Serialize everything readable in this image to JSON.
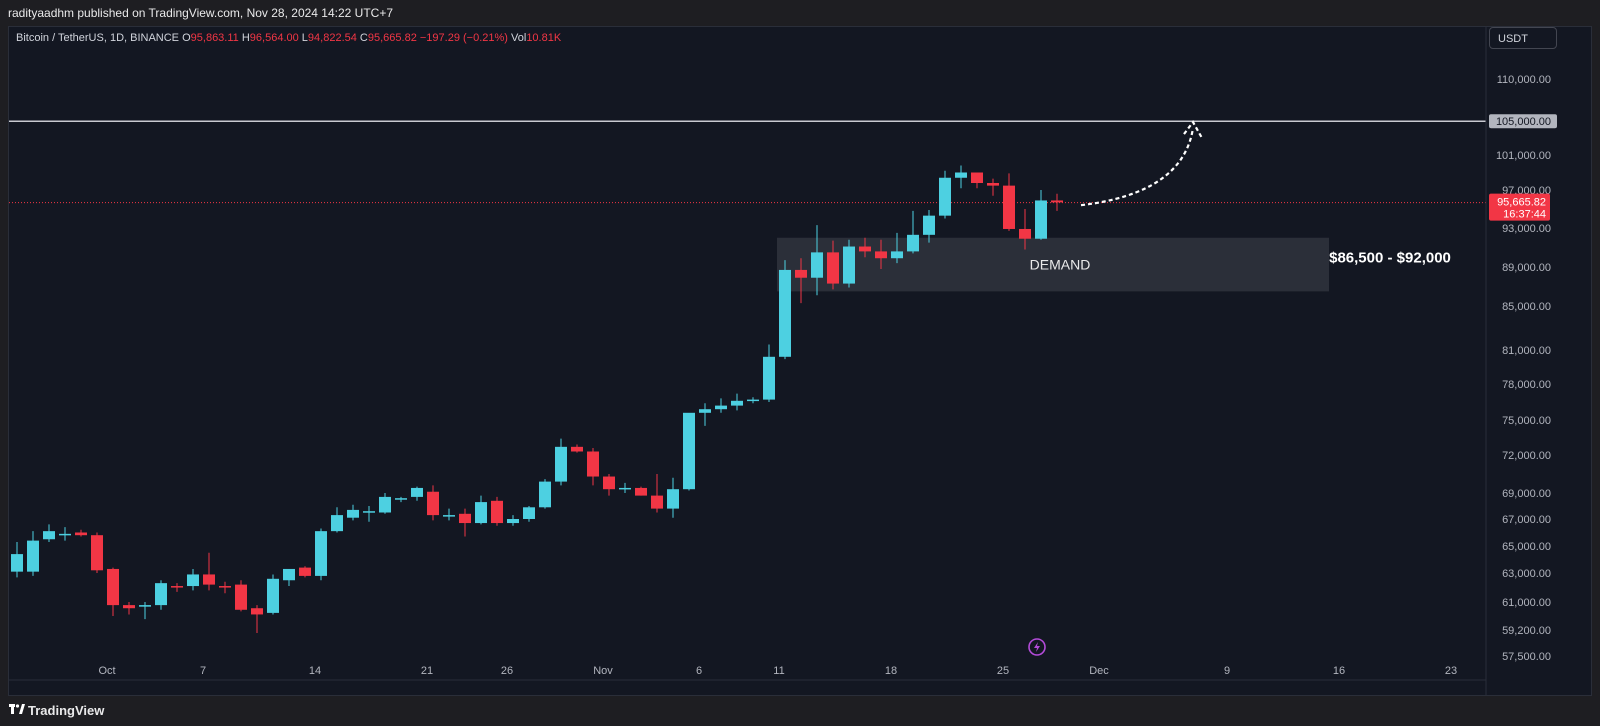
{
  "header": {
    "published": "radityaadhm published on TradingView.com, Nov 28, 2024 14:22 UTC+7"
  },
  "legend": {
    "symbol": "Bitcoin / TetherUS, 1D, BINANCE",
    "o_label": "O",
    "o_value": "95,863.11",
    "h_label": "H",
    "h_value": "96,564.00",
    "l_label": "L",
    "l_value": "94,822.54",
    "c_label": "C",
    "c_value": "95,665.82",
    "change": "−197.29 (−0.21%)",
    "vol_label": "Vol",
    "vol_value": "10.81K"
  },
  "currency_button": "USDT",
  "footer": {
    "brand": "TradingView"
  },
  "colors": {
    "up": "#4dd0e1",
    "down": "#f23645",
    "background": "#131722",
    "demand_zone": "#2f323c",
    "resistance_line": "#c8cad1",
    "price_line": "#f23645"
  },
  "chart_data": {
    "type": "candlestick",
    "timeframe": "1D",
    "y_tick_labels": [
      {
        "label": "110,000.00",
        "value": 110000
      },
      {
        "label": "101,000.00",
        "value": 101000
      },
      {
        "label": "97,000.00",
        "value": 97000
      },
      {
        "label": "93,000.00",
        "value": 93000
      },
      {
        "label": "89,000.00",
        "value": 89000
      },
      {
        "label": "85,000.00",
        "value": 85000
      },
      {
        "label": "81,000.00",
        "value": 81000
      },
      {
        "label": "78,000.00",
        "value": 78000
      },
      {
        "label": "75,000.00",
        "value": 75000
      },
      {
        "label": "72,000.00",
        "value": 72000
      },
      {
        "label": "69,000.00",
        "value": 69000
      },
      {
        "label": "67,000.00",
        "value": 67000
      },
      {
        "label": "65,000.00",
        "value": 65000
      },
      {
        "label": "63,000.00",
        "value": 63000
      },
      {
        "label": "61,000.00",
        "value": 61000
      },
      {
        "label": "59,200.00",
        "value": 59200
      },
      {
        "label": "57,500.00",
        "value": 57500
      }
    ],
    "x_tick_labels": [
      {
        "label": "Oct",
        "bar": 6
      },
      {
        "label": "7",
        "bar": 12
      },
      {
        "label": "14",
        "bar": 19
      },
      {
        "label": "21",
        "bar": 26
      },
      {
        "label": "26",
        "bar": 31
      },
      {
        "label": "Nov",
        "bar": 37
      },
      {
        "label": "6",
        "bar": 43
      },
      {
        "label": "11",
        "bar": 48
      },
      {
        "label": "18",
        "bar": 55
      },
      {
        "label": "25",
        "bar": 62
      },
      {
        "label": "Dec",
        "bar": 68
      },
      {
        "label": "9",
        "bar": 76
      },
      {
        "label": "16",
        "bar": 83
      },
      {
        "label": "23",
        "bar": 90
      }
    ],
    "candles": [
      {
        "o": 63100,
        "h": 65300,
        "l": 62700,
        "c": 64400
      },
      {
        "o": 63100,
        "h": 66100,
        "l": 62800,
        "c": 65400
      },
      {
        "o": 65500,
        "h": 66600,
        "l": 65300,
        "c": 66100
      },
      {
        "o": 65900,
        "h": 66400,
        "l": 65400,
        "c": 65900
      },
      {
        "o": 66000,
        "h": 66200,
        "l": 65700,
        "c": 65800
      },
      {
        "o": 65800,
        "h": 66000,
        "l": 63000,
        "c": 63200
      },
      {
        "o": 63300,
        "h": 63400,
        "l": 60100,
        "c": 60800
      },
      {
        "o": 60800,
        "h": 61000,
        "l": 60200,
        "c": 60600
      },
      {
        "o": 60700,
        "h": 61000,
        "l": 59900,
        "c": 60800
      },
      {
        "o": 60800,
        "h": 62500,
        "l": 60500,
        "c": 62300
      },
      {
        "o": 62100,
        "h": 62300,
        "l": 61700,
        "c": 62000
      },
      {
        "o": 62100,
        "h": 63300,
        "l": 61800,
        "c": 62900
      },
      {
        "o": 62900,
        "h": 64500,
        "l": 61800,
        "c": 62200
      },
      {
        "o": 62100,
        "h": 62400,
        "l": 61600,
        "c": 62000
      },
      {
        "o": 62200,
        "h": 62500,
        "l": 60400,
        "c": 60500
      },
      {
        "o": 60600,
        "h": 60800,
        "l": 59000,
        "c": 60200
      },
      {
        "o": 60300,
        "h": 62900,
        "l": 60200,
        "c": 62600
      },
      {
        "o": 62500,
        "h": 63300,
        "l": 62100,
        "c": 63300
      },
      {
        "o": 63400,
        "h": 63500,
        "l": 62700,
        "c": 62800
      },
      {
        "o": 62800,
        "h": 66300,
        "l": 62500,
        "c": 66100
      },
      {
        "o": 66100,
        "h": 67900,
        "l": 66000,
        "c": 67300
      },
      {
        "o": 67100,
        "h": 68100,
        "l": 66900,
        "c": 67700
      },
      {
        "o": 67500,
        "h": 68000,
        "l": 66800,
        "c": 67600
      },
      {
        "o": 67500,
        "h": 69000,
        "l": 67400,
        "c": 68700
      },
      {
        "o": 68500,
        "h": 68700,
        "l": 68300,
        "c": 68600
      },
      {
        "o": 68700,
        "h": 69500,
        "l": 68400,
        "c": 69400
      },
      {
        "o": 69100,
        "h": 69600,
        "l": 66900,
        "c": 67300
      },
      {
        "o": 67300,
        "h": 67800,
        "l": 66900,
        "c": 67300
      },
      {
        "o": 67400,
        "h": 67800,
        "l": 65700,
        "c": 66700
      },
      {
        "o": 66700,
        "h": 68800,
        "l": 66600,
        "c": 68300
      },
      {
        "o": 68400,
        "h": 68700,
        "l": 66500,
        "c": 66700
      },
      {
        "o": 66700,
        "h": 67300,
        "l": 66500,
        "c": 67000
      },
      {
        "o": 67000,
        "h": 68000,
        "l": 66800,
        "c": 67900
      },
      {
        "o": 67900,
        "h": 70100,
        "l": 67800,
        "c": 69900
      },
      {
        "o": 69900,
        "h": 73400,
        "l": 69600,
        "c": 72700
      },
      {
        "o": 72700,
        "h": 72900,
        "l": 72200,
        "c": 72300
      },
      {
        "o": 72300,
        "h": 72600,
        "l": 69600,
        "c": 70300
      },
      {
        "o": 70300,
        "h": 70500,
        "l": 68800,
        "c": 69300
      },
      {
        "o": 69300,
        "h": 69800,
        "l": 69000,
        "c": 69400
      },
      {
        "o": 69400,
        "h": 69500,
        "l": 68800,
        "c": 68800
      },
      {
        "o": 68800,
        "h": 70500,
        "l": 67500,
        "c": 67800
      },
      {
        "o": 67800,
        "h": 70200,
        "l": 67100,
        "c": 69300
      },
      {
        "o": 69300,
        "h": 75500,
        "l": 69200,
        "c": 75600
      },
      {
        "o": 75600,
        "h": 76400,
        "l": 74500,
        "c": 75900
      },
      {
        "o": 75900,
        "h": 76800,
        "l": 75600,
        "c": 76200
      },
      {
        "o": 76200,
        "h": 77200,
        "l": 75800,
        "c": 76600
      },
      {
        "o": 76600,
        "h": 76900,
        "l": 76400,
        "c": 76700
      },
      {
        "o": 76700,
        "h": 81500,
        "l": 76500,
        "c": 80400
      },
      {
        "o": 80400,
        "h": 89700,
        "l": 80200,
        "c": 88700
      },
      {
        "o": 88700,
        "h": 89900,
        "l": 85300,
        "c": 87900
      },
      {
        "o": 87900,
        "h": 93300,
        "l": 86100,
        "c": 90500
      },
      {
        "o": 90500,
        "h": 91700,
        "l": 86700,
        "c": 87300
      },
      {
        "o": 87300,
        "h": 91800,
        "l": 86900,
        "c": 91100
      },
      {
        "o": 91100,
        "h": 92000,
        "l": 90000,
        "c": 90600
      },
      {
        "o": 90600,
        "h": 91800,
        "l": 88800,
        "c": 89900
      },
      {
        "o": 89900,
        "h": 92500,
        "l": 89400,
        "c": 90600
      },
      {
        "o": 90600,
        "h": 94800,
        "l": 90400,
        "c": 92300
      },
      {
        "o": 92300,
        "h": 94900,
        "l": 91500,
        "c": 94300
      },
      {
        "o": 94300,
        "h": 99200,
        "l": 94000,
        "c": 98400
      },
      {
        "o": 98400,
        "h": 99800,
        "l": 97200,
        "c": 99000
      },
      {
        "o": 99000,
        "h": 99000,
        "l": 97200,
        "c": 97800
      },
      {
        "o": 97800,
        "h": 98300,
        "l": 96400,
        "c": 97500
      },
      {
        "o": 97500,
        "h": 98900,
        "l": 92700,
        "c": 92900
      },
      {
        "o": 92900,
        "h": 95000,
        "l": 90800,
        "c": 91900
      },
      {
        "o": 91900,
        "h": 97000,
        "l": 91800,
        "c": 95900
      },
      {
        "o": 95900,
        "h": 96600,
        "l": 94800,
        "c": 95700
      }
    ],
    "lines": [
      {
        "type": "horizontal",
        "name": "resistance",
        "value": 105000,
        "label": "105,000.00"
      },
      {
        "type": "horizontal",
        "name": "last-price",
        "value": 95665.82,
        "label": "95,665.82",
        "sublabel": "16:37:44"
      }
    ],
    "zone": {
      "name": "demand",
      "label": "DEMAND",
      "range_label": "$86,500 - $92,000",
      "low": 86500,
      "high": 92000,
      "start_bar": 48,
      "end_bar": 82
    },
    "arrow": {
      "from_bar": 66.5,
      "from_value": 95400,
      "to_bar": 73.5,
      "to_value": 104900
    }
  }
}
